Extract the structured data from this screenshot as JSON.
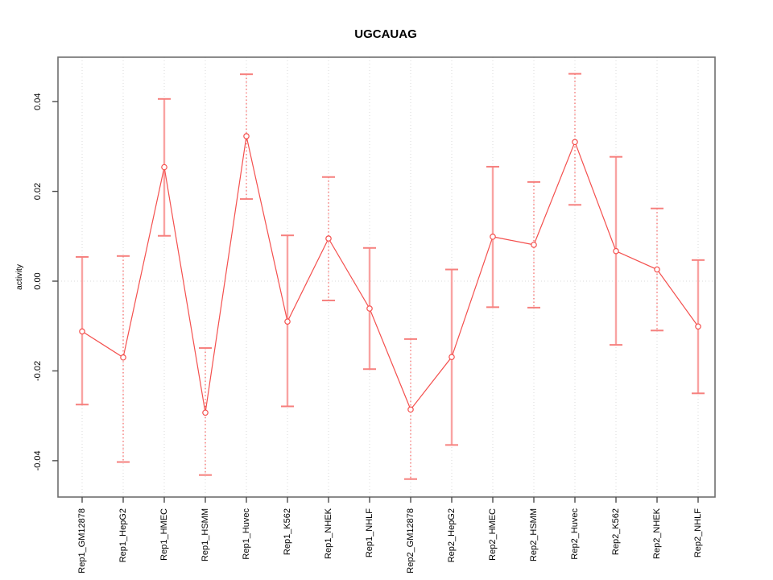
{
  "chart_data": {
    "type": "line",
    "title": "UGCAUAG",
    "xlabel": "",
    "ylabel": "activity",
    "legend": "none",
    "categories": [
      "Rep1_GM12878",
      "Rep1_HepG2",
      "Rep1_HMEC",
      "Rep1_HSMM",
      "Rep1_Huvec",
      "Rep1_K562",
      "Rep1_NHEK",
      "Rep1_NHLF",
      "Rep2_GM12878",
      "Rep2_HepG2",
      "Rep2_HMEC",
      "Rep2_HSMM",
      "Rep2_Huvec",
      "Rep2_K562",
      "Rep2_NHEK",
      "Rep2_NHLF"
    ],
    "series": [
      {
        "name": "activity",
        "marker": "open-circle",
        "values": [
          -0.0112,
          -0.017,
          0.0254,
          -0.0293,
          0.0323,
          -0.009,
          0.0095,
          -0.0061,
          -0.0286,
          -0.0169,
          0.0099,
          0.0081,
          0.031,
          0.0067,
          0.0026,
          -0.0101
        ],
        "error_low": [
          -0.0275,
          -0.0403,
          0.0101,
          -0.0432,
          0.0183,
          -0.0279,
          -0.0043,
          -0.0196,
          -0.0441,
          -0.0365,
          -0.0058,
          -0.0059,
          0.017,
          -0.0142,
          -0.011,
          -0.025
        ],
        "error_high": [
          0.0054,
          0.0056,
          0.0406,
          -0.0149,
          0.0461,
          0.0102,
          0.0232,
          0.0074,
          -0.0129,
          0.0026,
          0.0255,
          0.0221,
          0.0462,
          0.0277,
          0.0162,
          0.0047
        ],
        "error_bar_styles": [
          "solid",
          "dotted",
          "solid",
          "dotted",
          "dotted",
          "solid",
          "dotted",
          "solid",
          "dotted",
          "solid",
          "solid",
          "dotted",
          "dotted",
          "solid",
          "dotted",
          "solid"
        ]
      }
    ],
    "yticks": {
      "values": [
        -0.04,
        -0.02,
        0,
        0.02,
        0.04
      ],
      "labels": [
        "-0.04",
        "-0.02",
        "0.00",
        "0.02",
        "0.04"
      ]
    },
    "ylim": [
      -0.0481,
      0.0499
    ],
    "grid": {
      "vertical_at_categories": true,
      "horizontal_at_zero": true,
      "line_style": "dotted"
    },
    "colors": {
      "line": "#f4504e",
      "point_stroke": "#f4504e",
      "point_fill": "#ffffff",
      "error_bar_solid": "#f9a3a2",
      "error_bar_dotted": "#f4504e",
      "error_cap": "#f6807e",
      "grid": "#d9d9d9",
      "box": "#6e6e6e",
      "tick": "#4d4d4d",
      "text": "#000000"
    }
  }
}
